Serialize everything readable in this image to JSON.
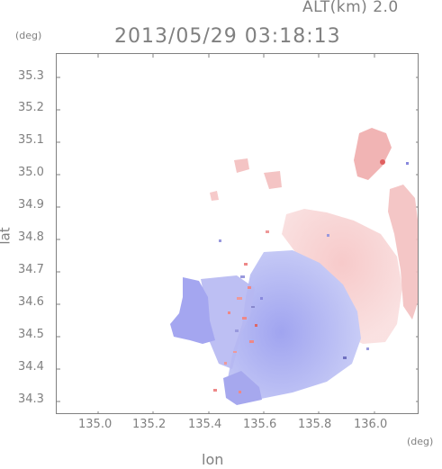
{
  "header": {
    "altitude_label": "ALT(km) 2.0",
    "datetime": "2013/05/29 03:18:13",
    "deg_unit_y": "(deg)",
    "deg_unit_x": "(deg)"
  },
  "axes": {
    "ylabel": "lat",
    "xlabel": "lon",
    "lat_ticks": [
      "35.3",
      "35.2",
      "35.1",
      "35.0",
      "34.9",
      "34.8",
      "34.7",
      "34.6",
      "34.5",
      "34.4",
      "34.3"
    ],
    "lon_ticks": [
      "135.0",
      "135.2",
      "135.4",
      "135.6",
      "135.8",
      "136.0"
    ]
  },
  "map_layer": {
    "type": "doppler-velocity",
    "colors": {
      "approaching": "#a8a8f0",
      "receding": "#f4b8b8",
      "neutral": "#e8e8f8"
    }
  }
}
